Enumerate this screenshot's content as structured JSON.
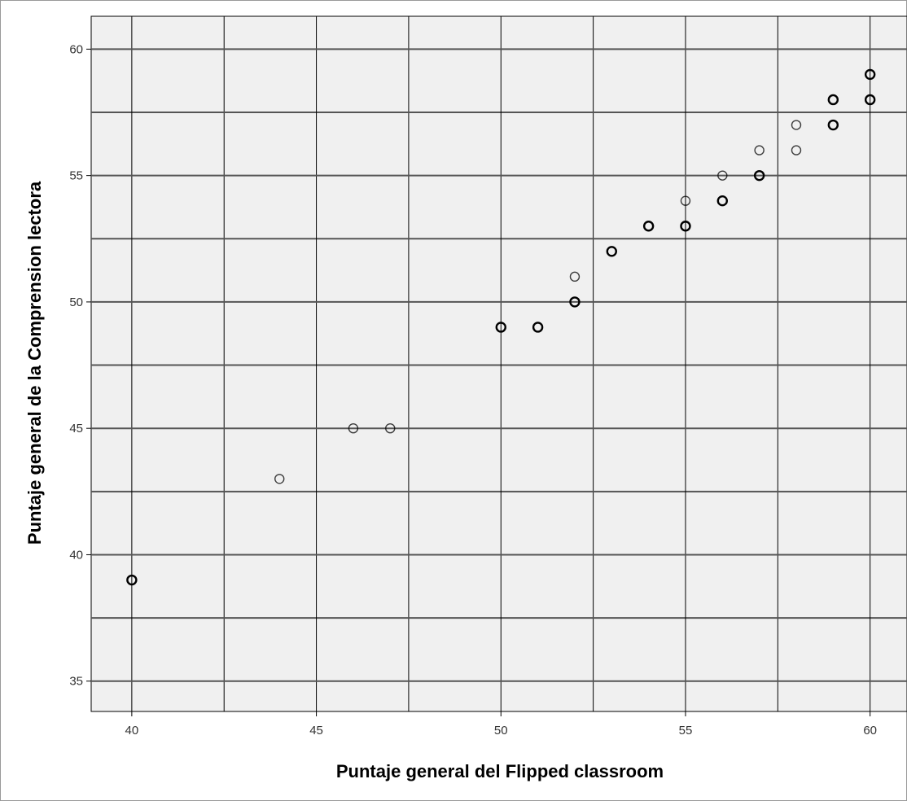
{
  "colors": {
    "plot_background": "#f0f0f0",
    "major_grid": "#000000",
    "minor_grid": "#555555",
    "point_stroke": "#000000",
    "page_background": "#ffffff"
  },
  "chart_data": {
    "type": "scatter",
    "title": "",
    "xlabel": "Puntaje general del Flipped classroom",
    "ylabel": "Puntaje general de la Comprension lectora",
    "xlim": [
      38.9,
      61.0
    ],
    "ylim": [
      33.8,
      61.3
    ],
    "xticks": [
      40,
      45,
      50,
      55,
      60
    ],
    "yticks": [
      35,
      40,
      45,
      50,
      55,
      60
    ],
    "x_minor_grid": [
      42.5,
      47.5,
      52.5,
      57.5
    ],
    "y_minor_grid": [
      37.5,
      42.5,
      47.5,
      52.5,
      57.5
    ],
    "grid": true,
    "legend": "none",
    "points": [
      {
        "x": 40,
        "y": 39,
        "n": 2
      },
      {
        "x": 44,
        "y": 43,
        "n": 1
      },
      {
        "x": 46,
        "y": 45,
        "n": 1
      },
      {
        "x": 47,
        "y": 45,
        "n": 1
      },
      {
        "x": 50,
        "y": 49,
        "n": 2
      },
      {
        "x": 51,
        "y": 49,
        "n": 2
      },
      {
        "x": 52,
        "y": 51,
        "n": 1
      },
      {
        "x": 52,
        "y": 50,
        "n": 2
      },
      {
        "x": 53,
        "y": 52,
        "n": 2
      },
      {
        "x": 54,
        "y": 53,
        "n": 2
      },
      {
        "x": 55,
        "y": 54,
        "n": 1
      },
      {
        "x": 55,
        "y": 53,
        "n": 2
      },
      {
        "x": 56,
        "y": 55,
        "n": 1
      },
      {
        "x": 56,
        "y": 54,
        "n": 2
      },
      {
        "x": 57,
        "y": 56,
        "n": 1
      },
      {
        "x": 57,
        "y": 55,
        "n": 2
      },
      {
        "x": 58,
        "y": 57,
        "n": 1
      },
      {
        "x": 58,
        "y": 56,
        "n": 1
      },
      {
        "x": 59,
        "y": 58,
        "n": 2
      },
      {
        "x": 59,
        "y": 57,
        "n": 2
      },
      {
        "x": 60,
        "y": 59,
        "n": 2
      },
      {
        "x": 60,
        "y": 58,
        "n": 2
      }
    ]
  }
}
